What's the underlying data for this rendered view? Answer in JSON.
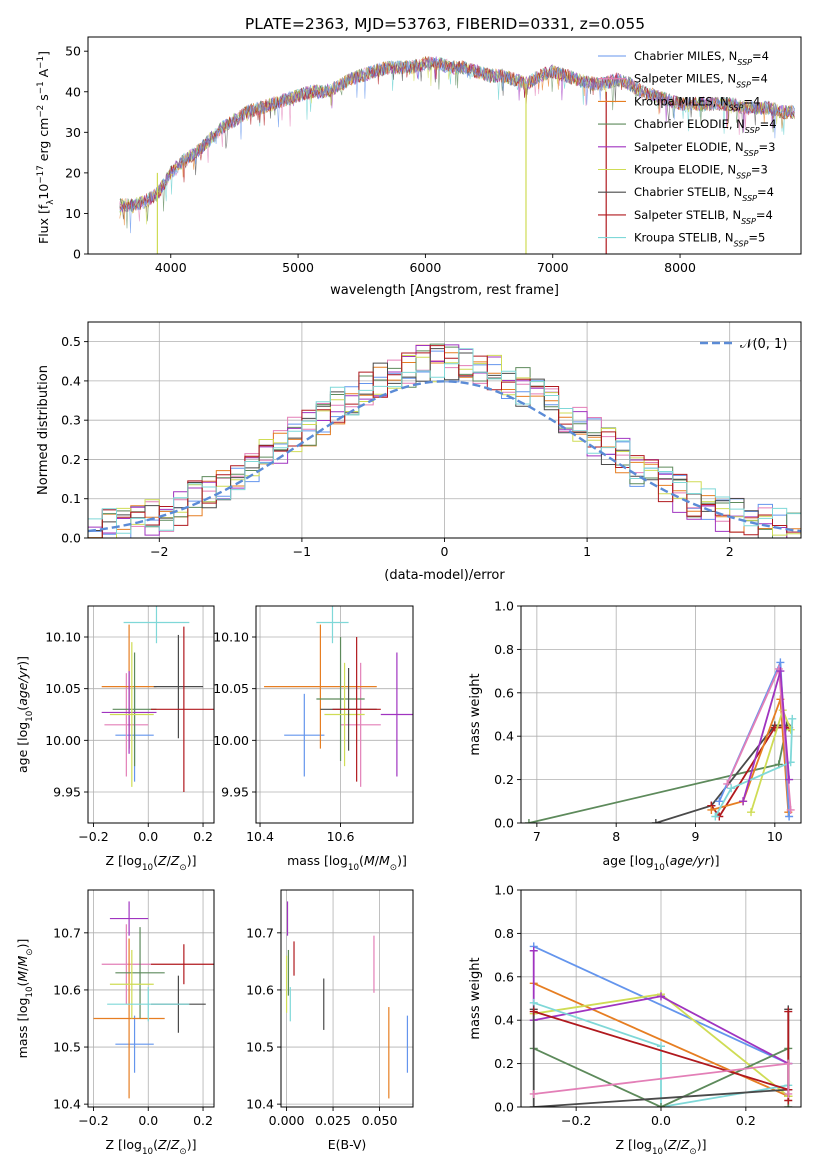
{
  "figure": {
    "title": "PLATE=2363, MJD=53763, FIBERID=0331, z=0.055"
  },
  "colors": {
    "Chabrier MILES": "#6495ed",
    "Salpeter MILES": "#e37fb7",
    "Kroupa MILES": "#e67e22",
    "Chabrier ELODIE": "#5d8a5b",
    "Salpeter ELODIE": "#a034c0",
    "Kroupa ELODIE": "#cfdc55",
    "Chabrier STELIB": "#4a4a4a",
    "Salpeter STELIB": "#b0191e",
    "Kroupa STELIB": "#7fd8d8",
    "normal": "#5b8bd6"
  },
  "chart_data": [
    {
      "id": "spectrum",
      "type": "line",
      "xlabel": "wavelength [Angstrom, rest frame]",
      "ylabel": "Flux [f",
      "ylabel_parts": [
        "Flux [f",
        "λ",
        "10",
        "−17",
        " erg cm",
        "−2",
        " s",
        "−1",
        " A",
        "−1",
        "]"
      ],
      "xlim": [
        3350,
        8950
      ],
      "ylim": [
        0,
        53.5
      ],
      "xticks": [
        4000,
        5000,
        6000,
        7000,
        8000
      ],
      "yticks": [
        0,
        10,
        20,
        30,
        40,
        50
      ],
      "grid": false,
      "legend_placement": "top-right",
      "series": [
        {
          "name": "Chabrier MILES",
          "sub": "SSP",
          "n": "=4"
        },
        {
          "name": "Salpeter MILES",
          "sub": "SSP",
          "n": "=4"
        },
        {
          "name": "Kroupa MILES",
          "sub": "SSP",
          "n": "=4"
        },
        {
          "name": "Chabrier ELODIE",
          "sub": "SSP",
          "n": "=4"
        },
        {
          "name": "Salpeter ELODIE",
          "sub": "SSP",
          "n": "=3"
        },
        {
          "name": "Kroupa ELODIE",
          "sub": "SSP",
          "n": "=3"
        },
        {
          "name": "Chabrier STELIB",
          "sub": "SSP",
          "n": "=4"
        },
        {
          "name": "Salpeter STELIB",
          "sub": "SSP",
          "n": "=4"
        },
        {
          "name": "Kroupa STELIB",
          "sub": "SSP",
          "n": "=5"
        }
      ],
      "envelope": {
        "x": [
          3600,
          3700,
          3800,
          3900,
          4000,
          4100,
          4200,
          4300,
          4400,
          4500,
          4600,
          4700,
          4800,
          4900,
          5000,
          5100,
          5200,
          5300,
          5400,
          5500,
          5600,
          5700,
          5800,
          5900,
          6000,
          6100,
          6200,
          6300,
          6400,
          6500,
          6600,
          6700,
          6800,
          6900,
          7000,
          7100,
          7200,
          7300,
          7400,
          7500,
          7600,
          7700,
          7800,
          7900,
          8000,
          8100,
          8200,
          8300,
          8400,
          8500,
          8600,
          8700,
          8800,
          8900
        ],
        "y": [
          12,
          12,
          13,
          15,
          20,
          23,
          25,
          28,
          31,
          33,
          35,
          36,
          37,
          38,
          39,
          40,
          40,
          41,
          43,
          44,
          45,
          46,
          46,
          46,
          47,
          47,
          46,
          46,
          45,
          44,
          44,
          43,
          42,
          44,
          45,
          44,
          43,
          42,
          42,
          43,
          42,
          40,
          39,
          38,
          37,
          37,
          37,
          37,
          37,
          36,
          36,
          36,
          35,
          35
        ]
      },
      "vertical_spikes": [
        {
          "x": 3895,
          "y_from": 20,
          "y_to": 0,
          "series": "Kroupa ELODIE"
        },
        {
          "x": 6790,
          "y_from": 42,
          "y_to": 0,
          "series": "Kroupa ELODIE"
        },
        {
          "x": 7420,
          "y_from": 40,
          "y_to": 0,
          "series": "Salpeter STELIB"
        }
      ]
    },
    {
      "id": "residuals",
      "type": "line",
      "xlabel": "(data-model)/error",
      "ylabel": "Normed distribution",
      "xlim": [
        -2.5,
        2.5
      ],
      "ylim": [
        0,
        0.55
      ],
      "xticks": [
        -2,
        -1,
        0,
        1,
        2
      ],
      "yticks": [
        0.0,
        0.1,
        0.2,
        0.3,
        0.4,
        0.5
      ],
      "grid": true,
      "legend_placement": "top-right",
      "legend_label": "𝒩(0, 1)",
      "bin_width": 0.1,
      "jitter_max": 0.05
    },
    {
      "id": "age-z",
      "type": "scatter",
      "xlabel": "Z [log",
      "xlabel_parts": [
        "Z [log",
        "10",
        "(Z/Z",
        "⊙",
        ")]"
      ],
      "ylabel_parts": [
        "age  [log",
        "10",
        "(age/yr)]"
      ],
      "xlim": [
        -0.22,
        0.24
      ],
      "ylim": [
        9.92,
        10.13
      ],
      "xticks": [
        -0.2,
        0.0,
        0.2
      ],
      "yticks": [
        9.95,
        10.0,
        10.05,
        10.1
      ],
      "grid": true,
      "points": [
        {
          "series": "Chabrier MILES",
          "x": -0.05,
          "xerr": 0.07,
          "y": 10.005,
          "yerr": 0.045
        },
        {
          "series": "Salpeter MILES",
          "x": -0.08,
          "xerr": 0.08,
          "y": 10.015,
          "yerr": 0.05
        },
        {
          "series": "Kroupa MILES",
          "x": -0.07,
          "xerr": 0.1,
          "y": 10.052,
          "yerr": 0.06
        },
        {
          "series": "Chabrier ELODIE",
          "x": -0.05,
          "xerr": 0.08,
          "y": 10.03,
          "yerr": 0.055
        },
        {
          "series": "Salpeter ELODIE",
          "x": -0.07,
          "xerr": 0.1,
          "y": 10.027,
          "yerr": 0.04
        },
        {
          "series": "Kroupa ELODIE",
          "x": -0.06,
          "xerr": 0.08,
          "y": 10.025,
          "yerr": 0.07
        },
        {
          "series": "Chabrier STELIB",
          "x": 0.11,
          "xerr": 0.09,
          "y": 10.052,
          "yerr": 0.05
        },
        {
          "series": "Salpeter STELIB",
          "x": 0.13,
          "xerr": 0.12,
          "y": 10.03,
          "yerr": 0.08
        },
        {
          "series": "Kroupa STELIB",
          "x": 0.03,
          "xerr": 0.12,
          "y": 10.114,
          "yerr": 0.02
        }
      ]
    },
    {
      "id": "age-mass",
      "type": "scatter",
      "xlabel_parts": [
        "mass [log",
        "10",
        "(M/M",
        "⊙",
        ")]"
      ],
      "xlim": [
        10.39,
        10.78
      ],
      "ylim": [
        9.92,
        10.13
      ],
      "xticks": [
        10.4,
        10.6
      ],
      "yticks": [
        9.95,
        10.0,
        10.05,
        10.1
      ],
      "grid": true,
      "points": [
        {
          "series": "Chabrier MILES",
          "x": 10.51,
          "xerr": 0.05,
          "y": 10.005,
          "yerr": 0.04
        },
        {
          "series": "Salpeter MILES",
          "x": 10.65,
          "xerr": 0.05,
          "y": 10.015,
          "yerr": 0.06
        },
        {
          "series": "Kroupa MILES",
          "x": 10.55,
          "xerr": 0.14,
          "y": 10.052,
          "yerr": 0.06
        },
        {
          "series": "Chabrier ELODIE",
          "x": 10.6,
          "xerr": 0.06,
          "y": 10.04,
          "yerr": 0.06
        },
        {
          "series": "Salpeter ELODIE",
          "x": 10.74,
          "xerr": 0.04,
          "y": 10.025,
          "yerr": 0.06
        },
        {
          "series": "Kroupa ELODIE",
          "x": 10.61,
          "xerr": 0.05,
          "y": 10.025,
          "yerr": 0.05
        },
        {
          "series": "Chabrier STELIB",
          "x": 10.62,
          "xerr": 0.07,
          "y": 10.03,
          "yerr": 0.04
        },
        {
          "series": "Salpeter STELIB",
          "x": 10.64,
          "xerr": 0.06,
          "y": 10.03,
          "yerr": 0.07
        },
        {
          "series": "Kroupa STELIB",
          "x": 10.58,
          "xerr": 0.04,
          "y": 10.114,
          "yerr": 0.02
        }
      ]
    },
    {
      "id": "weight-age",
      "type": "line",
      "xlabel_parts": [
        "age  [log",
        "10",
        "(age/yr)]"
      ],
      "ylabel": "mass weight",
      "xlim": [
        6.8,
        10.33
      ],
      "ylim": [
        0,
        1
      ],
      "xticks": [
        7,
        8,
        9,
        10
      ],
      "yticks": [
        0.0,
        0.2,
        0.4,
        0.6,
        0.8,
        1.0
      ],
      "grid": true,
      "series": [
        {
          "name": "Chabrier ELODIE",
          "x": [
            6.9,
            10.05,
            10.15
          ],
          "y": [
            0.0,
            0.27,
            0.45
          ]
        },
        {
          "name": "Chabrier STELIB",
          "x": [
            8.5,
            9.2,
            10.0,
            10.15
          ],
          "y": [
            0.0,
            0.08,
            0.45,
            0.45
          ]
        },
        {
          "name": "Salpeter STELIB",
          "x": [
            9.2,
            9.3,
            10.0,
            10.18
          ],
          "y": [
            0.08,
            0.03,
            0.44,
            0.44
          ]
        },
        {
          "name": "Kroupa MILES",
          "x": [
            9.2,
            9.6,
            10.07,
            10.17
          ],
          "y": [
            0.06,
            0.1,
            0.57,
            0.05
          ]
        },
        {
          "name": "Kroupa ELODIE",
          "x": [
            9.7,
            10.1,
            10.2
          ],
          "y": [
            0.05,
            0.52,
            0.43
          ]
        },
        {
          "name": "Chabrier MILES",
          "x": [
            9.3,
            10.07,
            10.18
          ],
          "y": [
            0.1,
            0.74,
            0.03
          ]
        },
        {
          "name": "Salpeter MILES",
          "x": [
            9.4,
            10.05,
            10.2
          ],
          "y": [
            0.18,
            0.71,
            0.06
          ]
        },
        {
          "name": "Kroupa STELIB",
          "x": [
            9.25,
            9.45,
            10.2,
            10.22
          ],
          "y": [
            0.03,
            0.16,
            0.28,
            0.48
          ]
        },
        {
          "name": "Salpeter ELODIE",
          "x": [
            9.6,
            10.07,
            10.18
          ],
          "y": [
            0.1,
            0.7,
            0.2
          ]
        }
      ]
    },
    {
      "id": "mass-z",
      "type": "scatter",
      "xlabel_parts": [
        "Z [log",
        "10",
        "(Z/Z",
        "⊙",
        ")]"
      ],
      "ylabel_parts": [
        "mass [log",
        "10",
        "(M/M",
        "⊙",
        ")]"
      ],
      "xlim": [
        -0.22,
        0.24
      ],
      "ylim": [
        10.395,
        10.775
      ],
      "xticks": [
        -0.2,
        0.0,
        0.2
      ],
      "yticks": [
        10.4,
        10.5,
        10.6,
        10.7
      ],
      "grid": true,
      "points": [
        {
          "series": "Chabrier MILES",
          "x": -0.05,
          "xerr": 0.07,
          "y": 10.505,
          "yerr": 0.05
        },
        {
          "series": "Salpeter MILES",
          "x": -0.08,
          "xerr": 0.09,
          "y": 10.645,
          "yerr": 0.07
        },
        {
          "series": "Kroupa MILES",
          "x": -0.07,
          "xerr": 0.13,
          "y": 10.55,
          "yerr": 0.14
        },
        {
          "series": "Chabrier ELODIE",
          "x": -0.03,
          "xerr": 0.09,
          "y": 10.63,
          "yerr": 0.08
        },
        {
          "series": "Salpeter ELODIE",
          "x": -0.07,
          "xerr": 0.07,
          "y": 10.725,
          "yerr": 0.03
        },
        {
          "series": "Kroupa ELODIE",
          "x": -0.06,
          "xerr": 0.08,
          "y": 10.61,
          "yerr": 0.06
        },
        {
          "series": "Chabrier STELIB",
          "x": 0.11,
          "xerr": 0.1,
          "y": 10.575,
          "yerr": 0.05
        },
        {
          "series": "Salpeter STELIB",
          "x": 0.13,
          "xerr": 0.12,
          "y": 10.645,
          "yerr": 0.035
        },
        {
          "series": "Kroupa STELIB",
          "x": 0.0,
          "xerr": 0.15,
          "y": 10.575,
          "yerr": 0.03
        }
      ]
    },
    {
      "id": "mass-ebv",
      "type": "scatter",
      "xlabel": "E(B-V)",
      "xlim": [
        -0.003,
        0.068
      ],
      "ylim": [
        10.395,
        10.775
      ],
      "xticks": [
        0.0,
        0.025,
        0.05
      ],
      "xticklabels": [
        "0.000",
        "0.025",
        "0.050"
      ],
      "yticks": [
        10.4,
        10.5,
        10.6,
        10.7
      ],
      "grid": true,
      "points": [
        {
          "series": "Chabrier MILES",
          "x": 0.065,
          "y": 10.505,
          "yerr": 0.05
        },
        {
          "series": "Salpeter MILES",
          "x": 0.047,
          "y": 10.645,
          "yerr": 0.05
        },
        {
          "series": "Kroupa MILES",
          "x": 0.055,
          "y": 10.49,
          "yerr": 0.08
        },
        {
          "series": "Chabrier ELODIE",
          "x": 0.001,
          "y": 10.63,
          "yerr": 0.04
        },
        {
          "series": "Salpeter ELODIE",
          "x": 0.0005,
          "y": 10.725,
          "yerr": 0.03
        },
        {
          "series": "Kroupa ELODIE",
          "x": 0.0,
          "y": 10.61,
          "yerr": 0.05
        },
        {
          "series": "Chabrier STELIB",
          "x": 0.02,
          "y": 10.575,
          "yerr": 0.045
        },
        {
          "series": "Salpeter STELIB",
          "x": 0.004,
          "y": 10.655,
          "yerr": 0.03
        },
        {
          "series": "Kroupa STELIB",
          "x": 0.002,
          "y": 10.575,
          "yerr": 0.03
        }
      ]
    },
    {
      "id": "weight-z",
      "type": "line",
      "xlabel_parts": [
        "Z [log",
        "10",
        "(Z/Z",
        "⊙",
        ")]"
      ],
      "ylabel": "mass weight",
      "xlim": [
        -0.33,
        0.33
      ],
      "ylim": [
        0,
        1
      ],
      "xticks": [
        -0.2,
        0.0,
        0.2
      ],
      "yticks": [
        0.0,
        0.2,
        0.4,
        0.6,
        0.8,
        1.0
      ],
      "grid": true,
      "series": [
        {
          "name": "Chabrier MILES",
          "x": [
            -0.3,
            0.3,
            0.3
          ],
          "y": [
            0.74,
            0.2,
            0.05
          ]
        },
        {
          "name": "Kroupa MILES",
          "x": [
            -0.3,
            0.3,
            0.3
          ],
          "y": [
            0.57,
            0.05,
            0.05
          ]
        },
        {
          "name": "Kroupa ELODIE",
          "x": [
            -0.3,
            0.0,
            0.3,
            0.3
          ],
          "y": [
            0.43,
            0.52,
            0.05,
            0.05
          ]
        },
        {
          "name": "Salpeter ELODIE",
          "x": [
            -0.3,
            -0.3,
            0.0,
            0.3
          ],
          "y": [
            0.72,
            0.4,
            0.51,
            0.2
          ]
        },
        {
          "name": "Kroupa STELIB",
          "x": [
            -0.3,
            0.0,
            0.0,
            0.3
          ],
          "y": [
            0.48,
            0.28,
            0.0,
            0.1
          ]
        },
        {
          "name": "Chabrier ELODIE",
          "x": [
            -0.3,
            0.0,
            0.3,
            0.3
          ],
          "y": [
            0.27,
            0.0,
            0.27,
            0.0
          ]
        },
        {
          "name": "Chabrier STELIB",
          "x": [
            -0.3,
            -0.3,
            0.3,
            0.3
          ],
          "y": [
            0.45,
            0.0,
            0.08,
            0.45
          ]
        },
        {
          "name": "Salpeter STELIB",
          "x": [
            -0.3,
            0.3,
            0.3,
            0.3
          ],
          "y": [
            0.44,
            0.08,
            0.44,
            0.03
          ]
        },
        {
          "name": "Salpeter MILES",
          "x": [
            -0.3,
            0.3,
            0.3
          ],
          "y": [
            0.06,
            0.2,
            0.06
          ]
        }
      ]
    }
  ]
}
